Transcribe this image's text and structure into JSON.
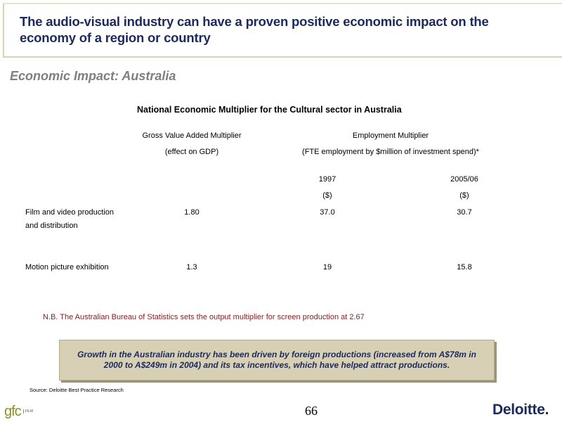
{
  "header": {
    "title": "The audio-visual industry can have a proven positive economic impact on the economy of a region or country"
  },
  "subtitle": "Economic Impact: Australia",
  "table": {
    "title": "National Economic Multiplier for the Cultural sector in Australia",
    "gva_header_1": "Gross Value Added Multiplier",
    "gva_header_2": "(effect on GDP)",
    "emp_header_1": "Employment Multiplier",
    "emp_header_2": "(FTE employment by $million of investment spend)*",
    "year_1": "1997",
    "year_2": "2005/06",
    "unit_1": "($)",
    "unit_2": "($)",
    "rows": [
      {
        "label_line1": "Film and video production",
        "label_line2": "and distribution",
        "gva": "1.80",
        "emp_1997": "37.0",
        "emp_2005": "30.7"
      },
      {
        "label_line1": "Motion picture exhibition",
        "label_line2": "",
        "gva": "1.3",
        "emp_1997": "19",
        "emp_2005": "15.8"
      }
    ]
  },
  "note": "N.B. The Australian Bureau of Statistics sets the output multiplier for screen production at 2.67",
  "callout": "Growth in the Australian industry has been driven by foreign productions (increased from A$78m in 2000 to A$249m in 2004) and its tax incentives, which have helped attract productions.",
  "source": "Source: Deloitte Best Practice Research",
  "page_number": "66",
  "logos": {
    "left_text": "gfc",
    "left_sub": "FILM",
    "right_text": "Deloitte",
    "right_dot": "."
  },
  "colors": {
    "title": "#1b2a5c",
    "subtitle": "#7f7f7f",
    "note": "#8b1a1a",
    "callout_bg": "#d8d0b4",
    "frame": "#d9d2b3"
  }
}
